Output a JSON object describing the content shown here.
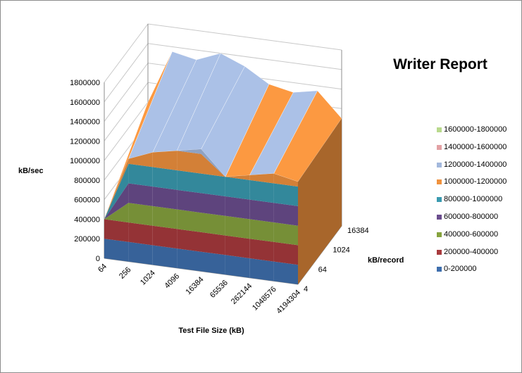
{
  "chart_data": {
    "type": "surface",
    "title": "Writer Report",
    "ylabel": "kB/sec",
    "xlabel": "Test File Size (kB)",
    "zlabel": "kB/record",
    "y_ticks": [
      "1800000",
      "1600000",
      "1400000",
      "1200000",
      "1000000",
      "800000",
      "600000",
      "400000",
      "200000",
      "0"
    ],
    "ylim": [
      0,
      1800000
    ],
    "x_ticks": [
      "64",
      "256",
      "1024",
      "4096",
      "16384",
      "65536",
      "262144",
      "1048576",
      "4194304"
    ],
    "z_ticks": [
      "4",
      "64",
      "1024",
      "16384"
    ],
    "legend_position": "right",
    "legend": [
      {
        "label": "1600000-1800000",
        "color": "#b9d98c"
      },
      {
        "label": "1400000-1600000",
        "color": "#e3a1a4"
      },
      {
        "label": "1200000-1400000",
        "color": "#a3b8dc"
      },
      {
        "label": "1000000-1200000",
        "color": "#f0923e"
      },
      {
        "label": "800000-1000000",
        "color": "#3a9ab0"
      },
      {
        "label": "600000-800000",
        "color": "#6b4d8e"
      },
      {
        "label": "400000-600000",
        "color": "#86a33e"
      },
      {
        "label": "200000-400000",
        "color": "#a83a3d"
      },
      {
        "label": "0-200000",
        "color": "#3e6fae"
      }
    ],
    "series_front": [
      {
        "x": "64",
        "value": 400000
      },
      {
        "x": "256",
        "value": 1050000
      },
      {
        "x": "1024",
        "value": 1150000
      },
      {
        "x": "4096",
        "value": 1200000
      },
      {
        "x": "16384",
        "value": 1250000
      },
      {
        "x": "65536",
        "value": 1000000
      },
      {
        "x": "262144",
        "value": 1050000
      },
      {
        "x": "1048576",
        "value": 1100000
      },
      {
        "x": "4194304",
        "value": 1050000
      }
    ],
    "series_back": [
      {
        "x": "64",
        "value": 1000000
      },
      {
        "x": "256",
        "value": 1550000
      },
      {
        "x": "1024",
        "value": 1500000
      },
      {
        "x": "4096",
        "value": 1600000
      },
      {
        "x": "16384",
        "value": 1500000
      },
      {
        "x": "65536",
        "value": 1350000
      },
      {
        "x": "262144",
        "value": 1300000
      },
      {
        "x": "1048576",
        "value": 1350000
      },
      {
        "x": "4194304",
        "value": 1100000
      }
    ]
  }
}
